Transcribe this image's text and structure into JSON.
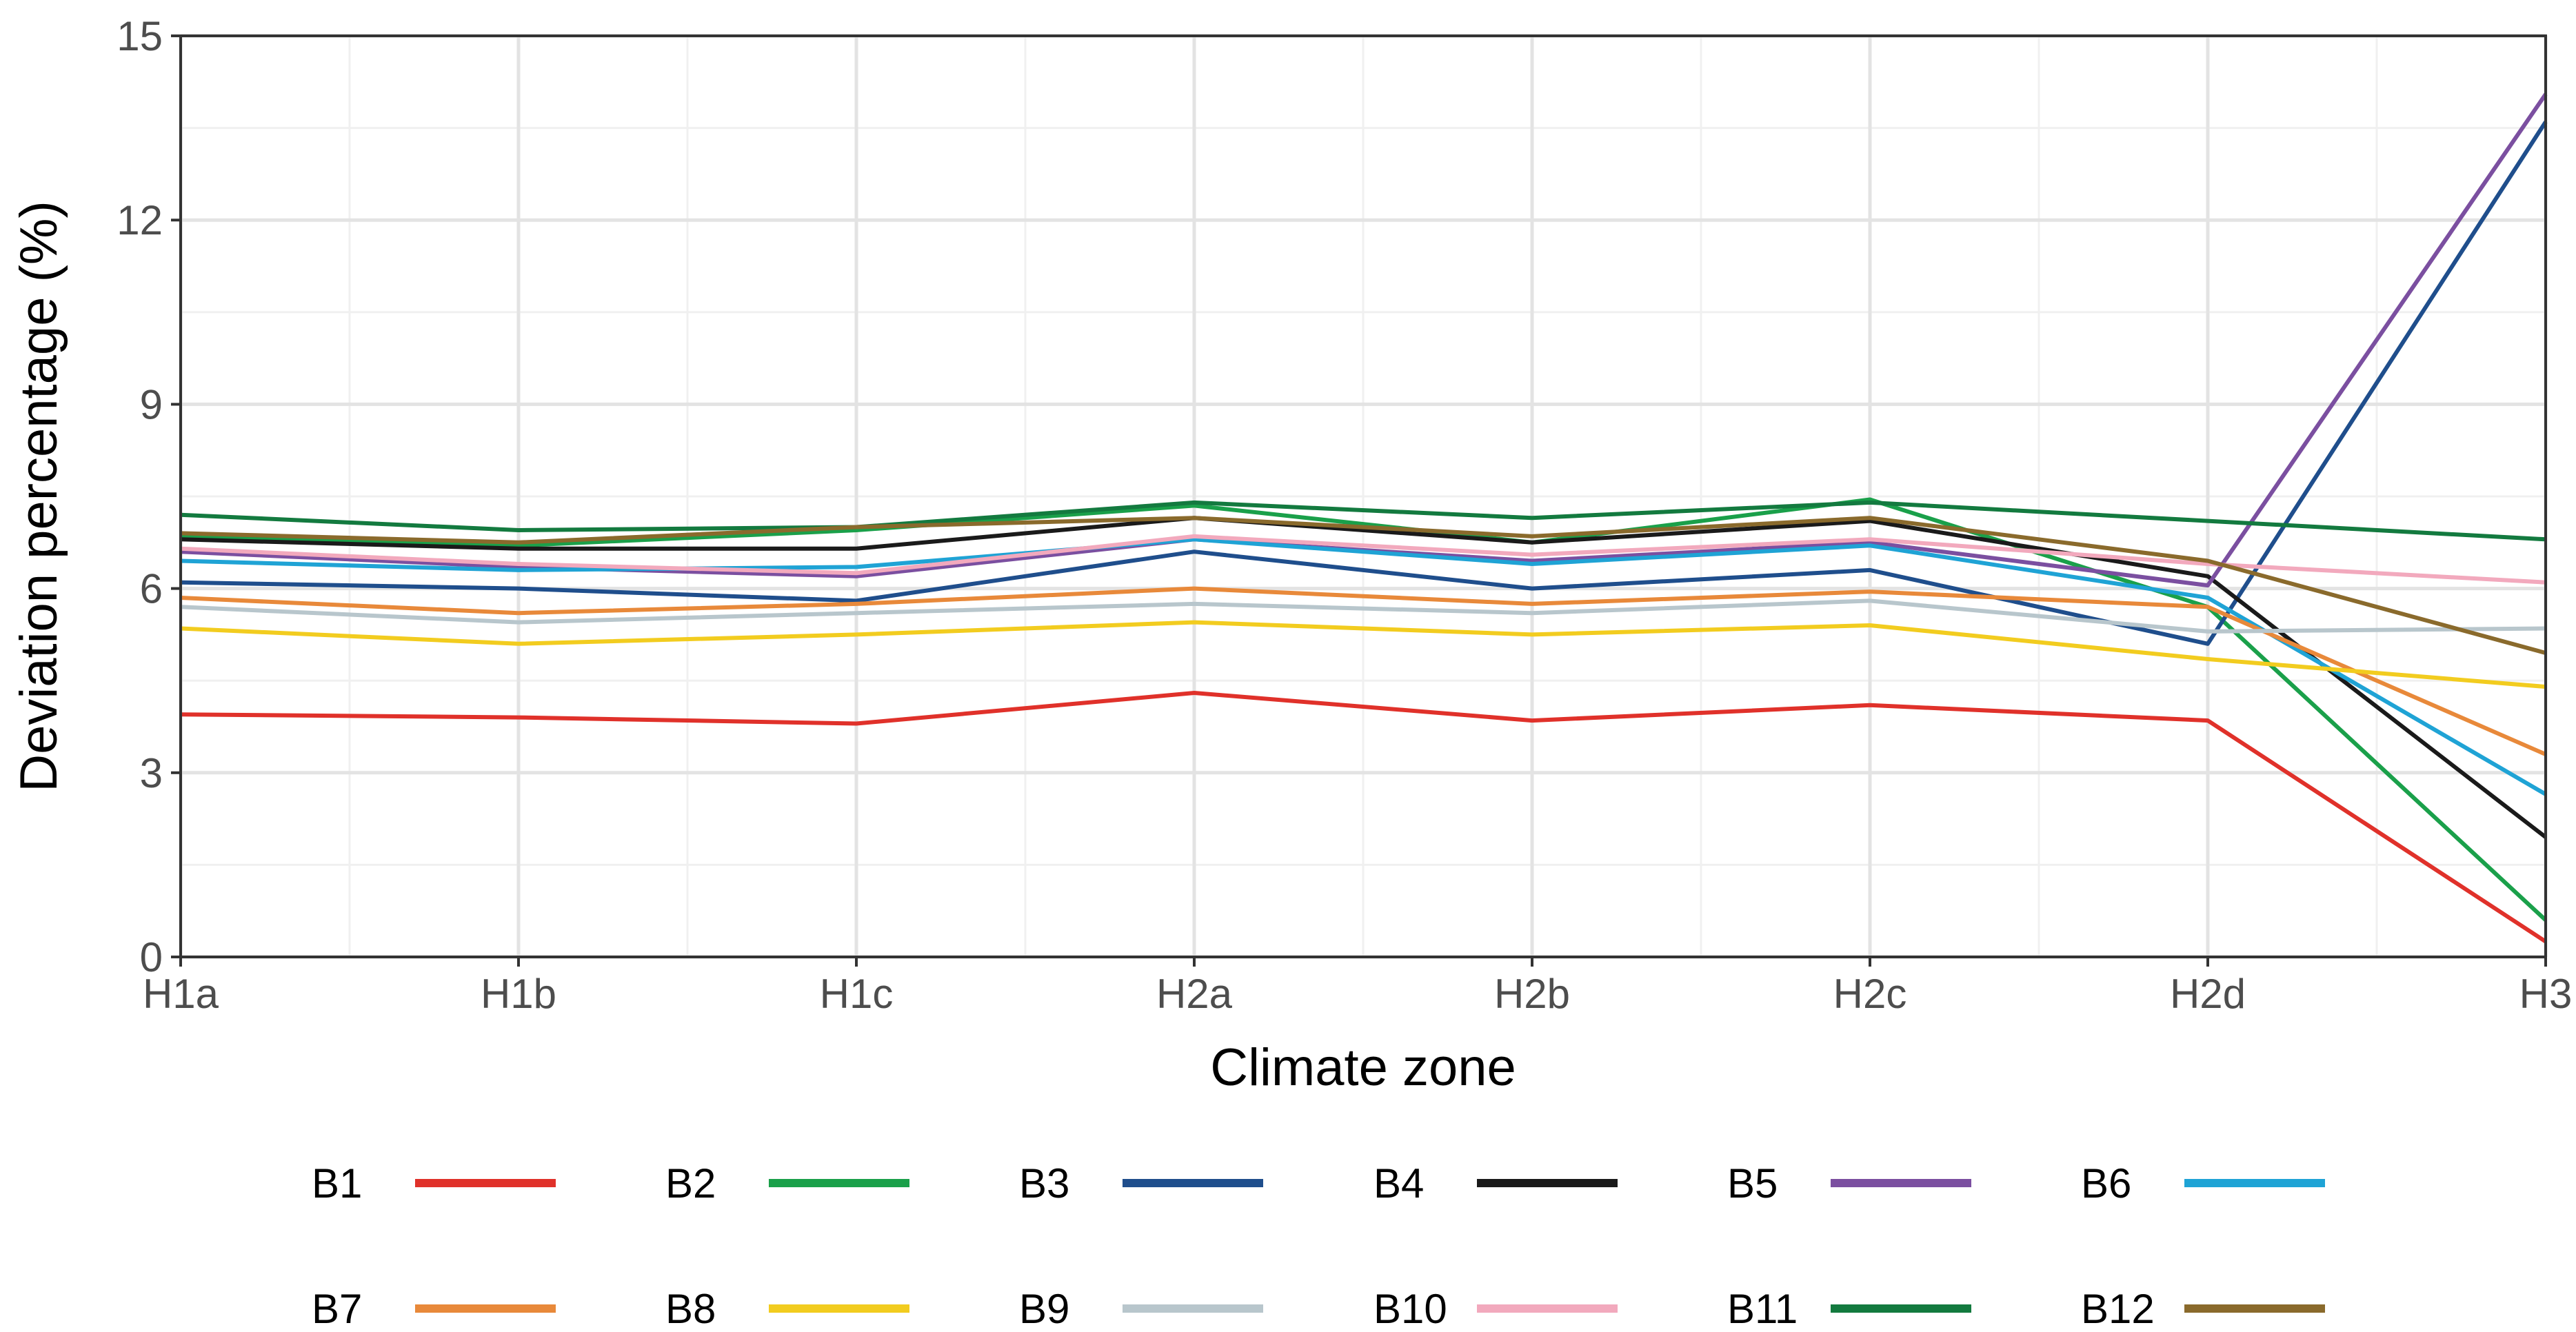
{
  "chart_data": {
    "type": "line",
    "title": "",
    "xlabel": "Climate zone",
    "ylabel": "Deviation percentage (%)",
    "categories": [
      "H1a",
      "H1b",
      "H1c",
      "H2a",
      "H2b",
      "H2c",
      "H2d",
      "H3"
    ],
    "ylim": [
      0,
      15
    ],
    "yticks": [
      0,
      3,
      6,
      9,
      12,
      15
    ],
    "ytick_labels": [
      "0",
      "3",
      "6",
      "9",
      "12",
      "15"
    ],
    "grid": true,
    "legend_position": "bottom",
    "series": [
      {
        "name": "B1",
        "color": "#e0312a",
        "values": [
          3.95,
          3.9,
          3.8,
          4.3,
          3.85,
          4.1,
          3.85,
          0.25
        ]
      },
      {
        "name": "B2",
        "color": "#1aa04a",
        "values": [
          6.85,
          6.7,
          6.95,
          7.35,
          6.75,
          7.45,
          5.7,
          0.6
        ]
      },
      {
        "name": "B3",
        "color": "#1f4e8c",
        "values": [
          6.1,
          6.0,
          5.8,
          6.6,
          6.0,
          6.3,
          5.1,
          13.6
        ]
      },
      {
        "name": "B4",
        "color": "#1a1a1a",
        "values": [
          6.8,
          6.65,
          6.65,
          7.15,
          6.75,
          7.1,
          6.2,
          1.95
        ]
      },
      {
        "name": "B5",
        "color": "#7b4fa0",
        "values": [
          6.6,
          6.35,
          6.2,
          6.8,
          6.45,
          6.75,
          6.05,
          14.05
        ]
      },
      {
        "name": "B6",
        "color": "#1fa3d5",
        "values": [
          6.45,
          6.3,
          6.35,
          6.8,
          6.4,
          6.7,
          5.85,
          2.65
        ]
      },
      {
        "name": "B7",
        "color": "#e8893a",
        "values": [
          5.85,
          5.6,
          5.75,
          6.0,
          5.75,
          5.95,
          5.7,
          3.3
        ]
      },
      {
        "name": "B8",
        "color": "#f2cc1f",
        "values": [
          5.35,
          5.1,
          5.25,
          5.45,
          5.25,
          5.4,
          4.85,
          4.4
        ]
      },
      {
        "name": "B9",
        "color": "#b8c6cc",
        "values": [
          5.7,
          5.45,
          5.6,
          5.75,
          5.6,
          5.8,
          5.3,
          5.35
        ]
      },
      {
        "name": "B10",
        "color": "#f2a9bd",
        "values": [
          6.65,
          6.4,
          6.25,
          6.85,
          6.55,
          6.8,
          6.4,
          6.1
        ]
      },
      {
        "name": "B11",
        "color": "#137a3f",
        "values": [
          7.2,
          6.95,
          7.0,
          7.4,
          7.15,
          7.4,
          7.1,
          6.8
        ]
      },
      {
        "name": "B12",
        "color": "#8a6a2c",
        "values": [
          6.9,
          6.75,
          7.0,
          7.15,
          6.85,
          7.15,
          6.45,
          4.95
        ]
      }
    ]
  }
}
